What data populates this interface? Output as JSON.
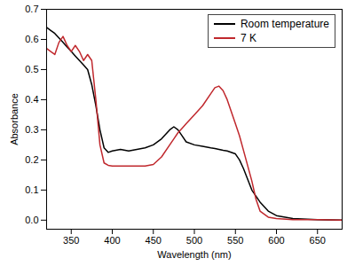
{
  "chart_data": {
    "type": "line",
    "x_label": "Wavelength (nm)",
    "y_label": "Absorbance",
    "x": [
      320,
      325,
      330,
      335,
      340,
      345,
      350,
      355,
      360,
      365,
      370,
      375,
      380,
      385,
      390,
      395,
      400,
      410,
      420,
      430,
      440,
      450,
      460,
      470,
      475,
      480,
      485,
      490,
      500,
      510,
      520,
      525,
      530,
      535,
      540,
      550,
      555,
      560,
      570,
      575,
      580,
      590,
      600,
      620,
      650,
      680
    ],
    "series": [
      {
        "name": "Room temperature",
        "color": "#000000",
        "line_style": "solid",
        "values": [
          0.64,
          0.63,
          0.62,
          0.605,
          0.59,
          0.575,
          0.56,
          0.545,
          0.53,
          0.515,
          0.5,
          0.45,
          0.38,
          0.3,
          0.24,
          0.225,
          0.23,
          0.235,
          0.23,
          0.235,
          0.24,
          0.25,
          0.27,
          0.3,
          0.31,
          0.3,
          0.28,
          0.26,
          0.25,
          0.245,
          0.24,
          0.238,
          0.235,
          0.232,
          0.23,
          0.22,
          0.2,
          0.17,
          0.1,
          0.08,
          0.06,
          0.03,
          0.015,
          0.005,
          0.002,
          0
        ]
      },
      {
        "name": "7 K",
        "color": "#c0282d",
        "line_style": "solid",
        "values": [
          0.57,
          0.56,
          0.55,
          0.59,
          0.61,
          0.58,
          0.56,
          0.58,
          0.56,
          0.53,
          0.55,
          0.53,
          0.4,
          0.25,
          0.19,
          0.182,
          0.18,
          0.18,
          0.18,
          0.18,
          0.18,
          0.185,
          0.21,
          0.25,
          0.27,
          0.29,
          0.305,
          0.32,
          0.35,
          0.38,
          0.42,
          0.44,
          0.445,
          0.43,
          0.4,
          0.32,
          0.28,
          0.23,
          0.13,
          0.07,
          0.03,
          0.01,
          0.005,
          0.002,
          0.002,
          0
        ]
      }
    ],
    "xlim": [
      320,
      680
    ],
    "xticks": [
      350,
      400,
      450,
      500,
      550,
      600,
      650
    ],
    "ylim": [
      -0.03,
      0.7
    ],
    "yticks": [
      {
        "value": 0,
        "label": "0.0"
      },
      0.1,
      0.2,
      0.3,
      0.4,
      0.5,
      0.6,
      0.7
    ],
    "legend": "top-right",
    "grid": false
  }
}
